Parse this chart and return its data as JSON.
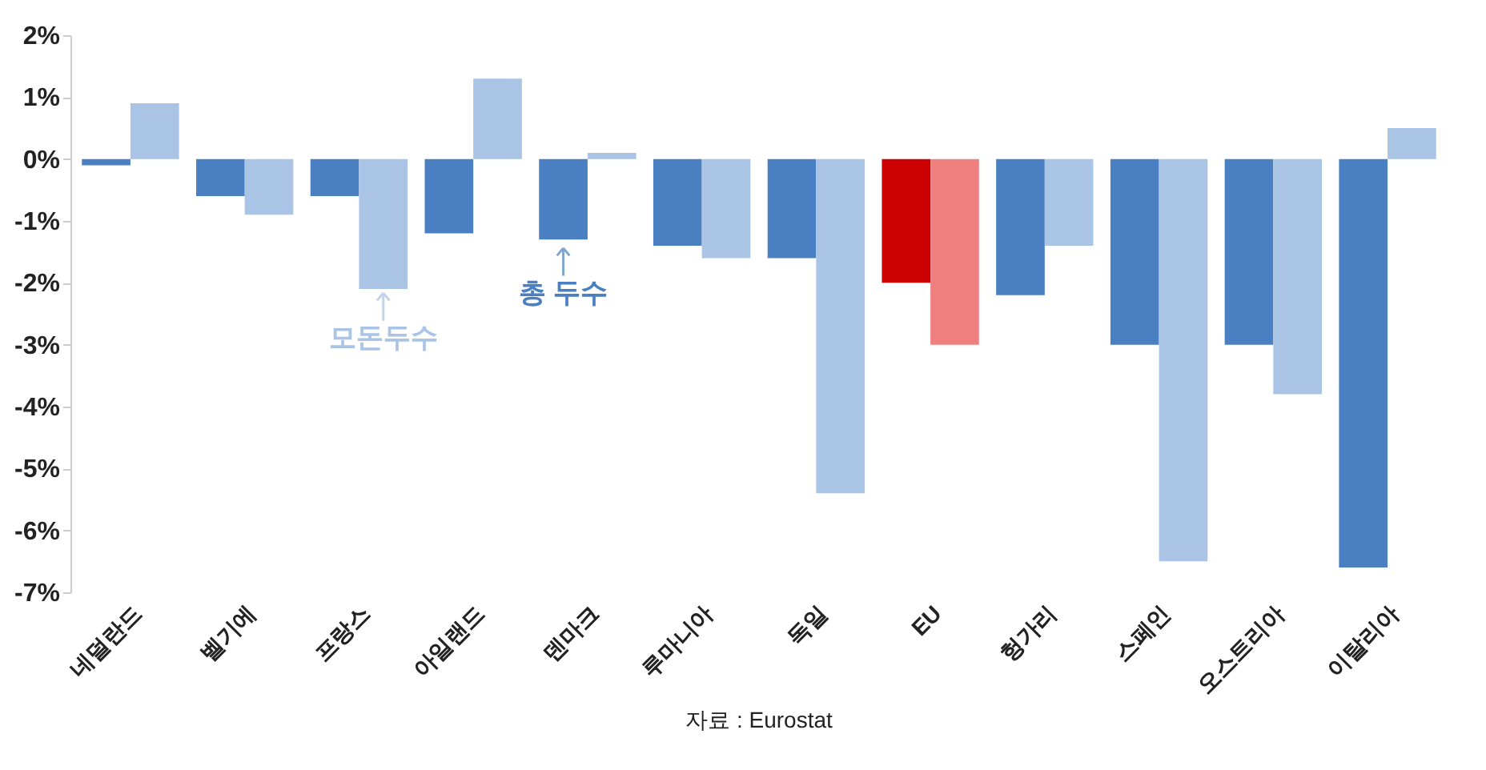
{
  "chart_data": {
    "type": "bar",
    "categories": [
      "네덜란드",
      "벨기에",
      "프랑스",
      "아일랜드",
      "덴마크",
      "루마니아",
      "독일",
      "EU",
      "헝가리",
      "스페인",
      "오스트리아",
      "이탈리아"
    ],
    "series": [
      {
        "color": "#4a7fc1",
        "colors": [
          "#4a7fc1",
          "#4a7fc1",
          "#4a7fc1",
          "#4a7fc1",
          "#4a7fc1",
          "#4a7fc1",
          "#4a7fc1",
          "#cc0000",
          "#4a7fc1",
          "#4a7fc1",
          "#4a7fc1",
          "#4a7fc1"
        ],
        "values": [
          -0.1,
          -0.6,
          -0.6,
          -1.2,
          -1.3,
          -1.4,
          -1.6,
          -2.0,
          -2.2,
          -3.0,
          -3.0,
          -6.6
        ]
      },
      {
        "color": "#a9c4e4",
        "colors": [
          "#a9c4e4",
          "#a9c4e4",
          "#a9c4e4",
          "#a9c4e4",
          "#a9c4e4",
          "#a9c4e4",
          "#a9c4e4",
          "#f08080",
          "#a9c4e4",
          "#a9c4e4",
          "#a9c4e4",
          "#a9c4e4"
        ],
        "values": [
          0.9,
          -0.9,
          -2.1,
          1.3,
          0.1,
          -1.6,
          -5.4,
          -3.0,
          -1.4,
          -6.5,
          -3.8,
          0.5
        ]
      }
    ],
    "ylim": [
      -7,
      2
    ],
    "yticks": [
      {
        "value": -7,
        "label": "-7%"
      },
      {
        "value": -6,
        "label": "-6%"
      },
      {
        "value": -5,
        "label": "-5%"
      },
      {
        "value": -4,
        "label": "-4%"
      },
      {
        "value": -3,
        "label": "-3%"
      },
      {
        "value": -2,
        "label": "-2%"
      },
      {
        "value": -1,
        "label": "-1%"
      },
      {
        "value": 0,
        "label": "0%"
      },
      {
        "value": 1,
        "label": "1%"
      },
      {
        "value": 2,
        "label": "2%"
      }
    ],
    "annotations": [
      "모돈두수",
      {
        "text": "총 두수",
        "x": "덴마크",
        "y": -1.3
      },
      "자료 : Eurostat"
    ],
    "grid": false
  }
}
